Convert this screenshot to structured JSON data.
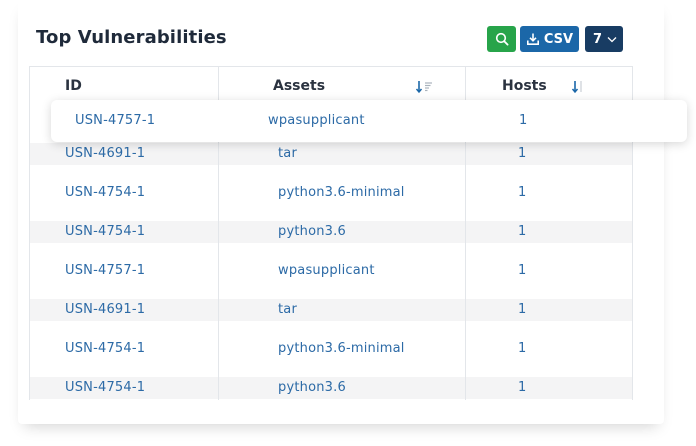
{
  "title": "Top Vulnerabilities",
  "toolbar": {
    "csv_label": "CSV",
    "count_value": "7"
  },
  "columns": {
    "id": "ID",
    "assets": "Assets",
    "hosts": "Hosts"
  },
  "highlighted_row": {
    "id": "USN-4757-1",
    "asset": "wpasupplicant",
    "hosts": "1"
  },
  "rows": [
    {
      "id": "USN-4691-1",
      "asset": "tar",
      "hosts": "1"
    },
    {
      "id": "USN-4754-1",
      "asset": "python3.6-minimal",
      "hosts": "1"
    },
    {
      "id": "USN-4754-1",
      "asset": "python3.6",
      "hosts": "1"
    },
    {
      "id": "USN-4757-1",
      "asset": "wpasupplicant",
      "hosts": "1"
    },
    {
      "id": "USN-4691-1",
      "asset": "tar",
      "hosts": "1"
    },
    {
      "id": "USN-4754-1",
      "asset": "python3.6-minimal",
      "hosts": "1"
    },
    {
      "id": "USN-4754-1",
      "asset": "python3.6",
      "hosts": "1"
    }
  ],
  "colors": {
    "search_button": "#27a44a",
    "csv_button": "#1b67a8",
    "count_button": "#183c63",
    "link_text": "#2c6aa6",
    "sort_icon": "#1b67a8"
  }
}
